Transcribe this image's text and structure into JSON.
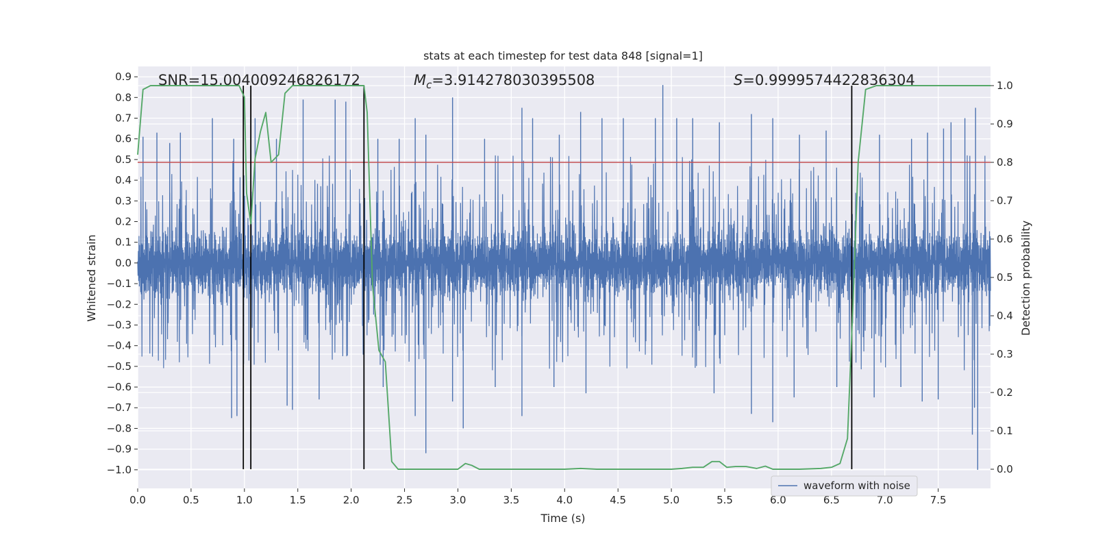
{
  "chart_data": {
    "type": "line",
    "title": "stats at each timestep for test data 848 [signal=1]",
    "xlabel": "Time (s)",
    "ylabel": "Whitened strain",
    "y2label": "Detection probability",
    "xlim": [
      0.0,
      7.99
    ],
    "ylim": [
      -1.09,
      0.95
    ],
    "y2lim": [
      -0.05,
      1.05
    ],
    "x_ticks": [
      "0.0",
      "0.5",
      "1.0",
      "1.5",
      "2.0",
      "2.5",
      "3.0",
      "3.5",
      "4.0",
      "4.5",
      "5.0",
      "5.5",
      "6.0",
      "6.5",
      "7.0",
      "7.5"
    ],
    "y_ticks": [
      "0.9",
      "0.8",
      "0.7",
      "0.6",
      "0.5",
      "0.4",
      "0.3",
      "0.2",
      "0.1",
      "0.0",
      "−0.1",
      "−0.2",
      "−0.3",
      "−0.4",
      "−0.5",
      "−0.6",
      "−0.7",
      "−0.8",
      "−0.9",
      "−1.0"
    ],
    "y2_ticks": [
      "1.0",
      "0.9",
      "0.8",
      "0.7",
      "0.6",
      "0.5",
      "0.4",
      "0.3",
      "0.2",
      "0.1",
      "0.0"
    ],
    "annotations": {
      "snr": "SNR=15.004009246826172",
      "mc_symbol": "M",
      "mc_sub": "c",
      "mc_value": "=3.914278030395508",
      "s_symbol": "S",
      "s_value": "=0.9999574422836304"
    },
    "threshold": {
      "y2": 0.8,
      "color": "#c44e52"
    },
    "vertical_lines": {
      "x": [
        0.99,
        1.06,
        2.12,
        6.69
      ],
      "y2_top": 1.0,
      "color": "#000000"
    },
    "waveform": {
      "name": "waveform with noise",
      "color": "#4c72b0",
      "duration": 7.99,
      "spikes": [
        {
          "x": 0.05,
          "y": 0.61
        },
        {
          "x": 0.18,
          "y": 0.63
        },
        {
          "x": 0.3,
          "y": 0.58
        },
        {
          "x": 0.4,
          "y": 0.63
        },
        {
          "x": 0.7,
          "y": 0.7
        },
        {
          "x": 0.9,
          "y": 0.6
        },
        {
          "x": 1.1,
          "y": 0.7
        },
        {
          "x": 1.3,
          "y": 0.6
        },
        {
          "x": 1.55,
          "y": 0.79
        },
        {
          "x": 1.85,
          "y": 0.79
        },
        {
          "x": 1.95,
          "y": 0.78
        },
        {
          "x": 2.25,
          "y": 0.6
        },
        {
          "x": 2.45,
          "y": 0.6
        },
        {
          "x": 2.6,
          "y": 0.7
        },
        {
          "x": 2.7,
          "y": 0.62
        },
        {
          "x": 2.95,
          "y": 0.8
        },
        {
          "x": 3.25,
          "y": 0.6
        },
        {
          "x": 3.6,
          "y": 0.75
        },
        {
          "x": 3.7,
          "y": 0.7
        },
        {
          "x": 3.95,
          "y": 0.62
        },
        {
          "x": 4.15,
          "y": 0.73
        },
        {
          "x": 4.35,
          "y": 0.7
        },
        {
          "x": 4.55,
          "y": 0.7
        },
        {
          "x": 4.85,
          "y": 0.7
        },
        {
          "x": 4.92,
          "y": 0.86
        },
        {
          "x": 5.05,
          "y": 0.7
        },
        {
          "x": 5.2,
          "y": 0.7
        },
        {
          "x": 5.45,
          "y": 0.68
        },
        {
          "x": 5.75,
          "y": 0.72
        },
        {
          "x": 5.95,
          "y": 0.7
        },
        {
          "x": 6.2,
          "y": 0.62
        },
        {
          "x": 6.45,
          "y": 0.64
        },
        {
          "x": 6.95,
          "y": 0.62
        },
        {
          "x": 7.25,
          "y": 0.6
        },
        {
          "x": 7.4,
          "y": 0.63
        },
        {
          "x": 7.55,
          "y": 0.65
        },
        {
          "x": 7.62,
          "y": 0.68
        },
        {
          "x": 7.75,
          "y": 0.7
        },
        {
          "x": 7.85,
          "y": 0.75
        },
        {
          "x": 0.88,
          "y": -0.75
        },
        {
          "x": 0.93,
          "y": -0.74
        },
        {
          "x": 1.4,
          "y": -0.69
        },
        {
          "x": 1.45,
          "y": -0.71
        },
        {
          "x": 1.7,
          "y": -0.66
        },
        {
          "x": 2.3,
          "y": -0.6
        },
        {
          "x": 2.6,
          "y": -0.74
        },
        {
          "x": 2.7,
          "y": -0.92
        },
        {
          "x": 2.95,
          "y": -0.67
        },
        {
          "x": 3.05,
          "y": -0.8
        },
        {
          "x": 3.35,
          "y": -0.6
        },
        {
          "x": 3.6,
          "y": -0.74
        },
        {
          "x": 3.9,
          "y": -0.6
        },
        {
          "x": 4.2,
          "y": -0.63
        },
        {
          "x": 5.4,
          "y": -0.63
        },
        {
          "x": 5.75,
          "y": -0.73
        },
        {
          "x": 5.95,
          "y": -0.77
        },
        {
          "x": 6.15,
          "y": -0.65
        },
        {
          "x": 6.55,
          "y": -0.6
        },
        {
          "x": 6.9,
          "y": -0.65
        },
        {
          "x": 7.15,
          "y": -0.6
        },
        {
          "x": 7.35,
          "y": -0.67
        },
        {
          "x": 7.5,
          "y": -0.66
        },
        {
          "x": 7.82,
          "y": -0.83
        },
        {
          "x": 7.84,
          "y": -0.7
        },
        {
          "x": 7.87,
          "y": -1.0
        }
      ]
    },
    "detection_probability": {
      "name": "Detection probability",
      "color": "#55a868",
      "x": [
        0.0,
        0.05,
        0.12,
        0.2,
        0.5,
        0.8,
        0.95,
        1.0,
        1.02,
        1.06,
        1.1,
        1.15,
        1.2,
        1.25,
        1.32,
        1.38,
        1.45,
        1.5,
        1.6,
        2.0,
        2.08,
        2.12,
        2.15,
        2.2,
        2.26,
        2.32,
        2.38,
        2.44,
        2.6,
        2.8,
        3.0,
        3.07,
        3.13,
        3.2,
        3.5,
        4.0,
        4.15,
        4.3,
        5.0,
        5.1,
        5.2,
        5.3,
        5.38,
        5.45,
        5.52,
        5.6,
        5.7,
        5.8,
        5.88,
        5.95,
        6.05,
        6.2,
        6.4,
        6.5,
        6.58,
        6.65,
        6.7,
        6.75,
        6.82,
        6.92,
        7.0,
        7.99
      ],
      "y": [
        0.82,
        0.99,
        1.0,
        1.0,
        1.0,
        1.0,
        1.0,
        0.97,
        0.72,
        0.64,
        0.81,
        0.88,
        0.93,
        0.8,
        0.82,
        0.98,
        1.0,
        1.0,
        1.0,
        1.0,
        1.0,
        1.0,
        0.93,
        0.48,
        0.31,
        0.28,
        0.02,
        0.0,
        0.0,
        0.0,
        0.0,
        0.015,
        0.01,
        0.0,
        0.0,
        0.0,
        0.002,
        0.0,
        0.0,
        0.002,
        0.005,
        0.005,
        0.02,
        0.02,
        0.005,
        0.007,
        0.007,
        0.002,
        0.008,
        0.0,
        0.0,
        0.0,
        0.002,
        0.005,
        0.015,
        0.08,
        0.42,
        0.8,
        0.99,
        1.0,
        1.0,
        1.0
      ]
    },
    "legend": {
      "position": "lower-right",
      "entries": [
        "waveform with noise"
      ]
    },
    "grid": true
  }
}
